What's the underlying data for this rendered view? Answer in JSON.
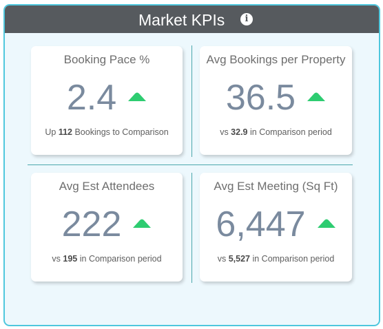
{
  "header": {
    "title": "Market KPIs",
    "info_icon": "info-icon"
  },
  "colors": {
    "accent": "#4ec7dd",
    "header_bg": "#565a5e",
    "up_arrow": "#2ecc71",
    "value": "#7a8a9e"
  },
  "kpis": [
    {
      "title": "Booking Pace %",
      "value": "2.4",
      "trend": "up",
      "sub_prefix": "Up",
      "sub_value": "112",
      "sub_suffix": "Bookings to Comparison"
    },
    {
      "title": "Avg Bookings per Property",
      "value": "36.5",
      "trend": "up",
      "sub_prefix": "vs",
      "sub_value": "32.9",
      "sub_suffix": "in Comparison period"
    },
    {
      "title": "Avg Est Attendees",
      "value": "222",
      "trend": "up",
      "sub_prefix": "vs",
      "sub_value": "195",
      "sub_suffix": "in Comparison period"
    },
    {
      "title": "Avg Est Meeting (Sq Ft)",
      "value": "6,447",
      "trend": "up",
      "sub_prefix": "vs",
      "sub_value": "5,527",
      "sub_suffix": "in Comparison period"
    }
  ]
}
